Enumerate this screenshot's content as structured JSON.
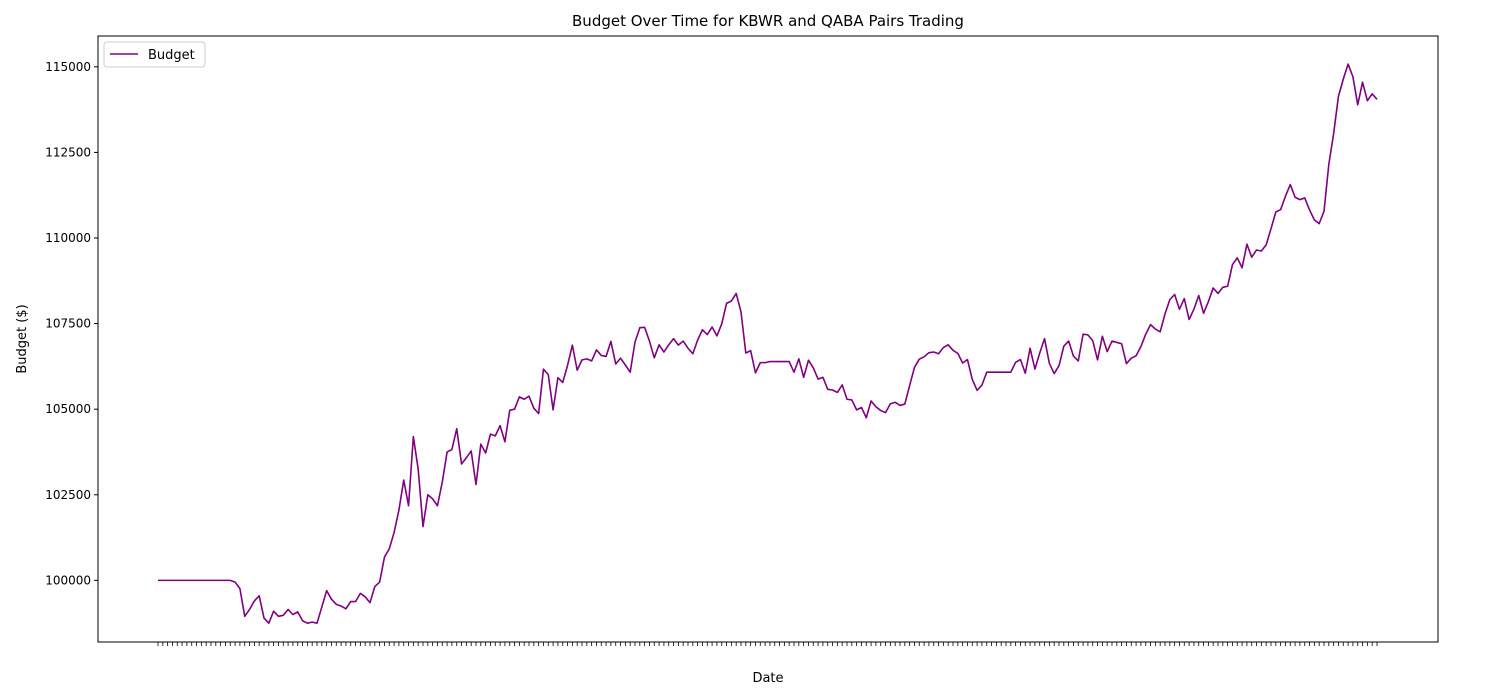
{
  "chart_data": {
    "type": "line",
    "title": "Budget Over Time for KBWR and QABA Pairs Trading",
    "xlabel": "Date",
    "ylabel": "Budget ($)",
    "ylim": [
      98200,
      115900
    ],
    "yticks": [
      100000,
      102500,
      105000,
      107500,
      110000,
      112500,
      115000
    ],
    "grid": false,
    "legend": {
      "position": "top-left",
      "entries": [
        "Budget"
      ]
    },
    "series": [
      {
        "name": "Budget",
        "color": "#800080",
        "values": [
          100000,
          100000,
          100000,
          100000,
          100000,
          100000,
          100000,
          100000,
          100000,
          100000,
          100000,
          100000,
          100000,
          100000,
          100000,
          100000,
          99950,
          99760,
          98950,
          99150,
          99400,
          99550,
          98900,
          98750,
          99100,
          98950,
          98980,
          99150,
          99000,
          99080,
          98820,
          98750,
          98780,
          98750,
          99220,
          99700,
          99450,
          99300,
          99250,
          99170,
          99380,
          99380,
          99620,
          99520,
          99350,
          99820,
          99950,
          100680,
          100920,
          101400,
          102050,
          102930,
          102180,
          104200,
          103250,
          101570,
          102500,
          102380,
          102180,
          102870,
          103750,
          103820,
          104430,
          103400,
          103580,
          103780,
          102800,
          103980,
          103720,
          104270,
          104220,
          104520,
          104050,
          104970,
          105000,
          105360,
          105290,
          105380,
          105030,
          104870,
          106170,
          106010,
          104980,
          105920,
          105780,
          106280,
          106870,
          106140,
          106440,
          106470,
          106410,
          106730,
          106570,
          106540,
          106980,
          106320,
          106490,
          106290,
          106080,
          106960,
          107380,
          107390,
          106990,
          106500,
          106880,
          106670,
          106880,
          107060,
          106870,
          106990,
          106780,
          106620,
          107020,
          107320,
          107180,
          107400,
          107140,
          107490,
          108090,
          108160,
          108380,
          107840,
          106640,
          106710,
          106060,
          106360,
          106360,
          106390,
          106390,
          106390,
          106390,
          106390,
          106080,
          106470,
          105930,
          106430,
          106210,
          105880,
          105930,
          105580,
          105560,
          105490,
          105710,
          105290,
          105270,
          104980,
          105050,
          104750,
          105240,
          105070,
          104960,
          104900,
          105160,
          105200,
          105110,
          105150,
          105690,
          106220,
          106460,
          106530,
          106650,
          106670,
          106620,
          106800,
          106880,
          106720,
          106630,
          106350,
          106450,
          105870,
          105550,
          105700,
          106080,
          106080,
          106080,
          106080,
          106080,
          106080,
          106370,
          106450,
          106050,
          106780,
          106170,
          106640,
          107060,
          106340,
          106040,
          106270,
          106840,
          106990,
          106550,
          106410,
          107190,
          107170,
          107000,
          106440,
          107130,
          106680,
          106990,
          106950,
          106910,
          106330,
          106490,
          106560,
          106830,
          107190,
          107470,
          107340,
          107260,
          107780,
          108200,
          108350,
          107920,
          108230,
          107620,
          107920,
          108320,
          107800,
          108140,
          108540,
          108380,
          108560,
          108590,
          109220,
          109420,
          109130,
          109820,
          109440,
          109650,
          109620,
          109800,
          110270,
          110760,
          110830,
          111220,
          111560,
          111190,
          111120,
          111170,
          110820,
          110530,
          110420,
          110780,
          112150,
          113050,
          114140,
          114640,
          115080,
          114710,
          113890,
          114550,
          114010,
          114210,
          114050
        ]
      }
    ]
  }
}
